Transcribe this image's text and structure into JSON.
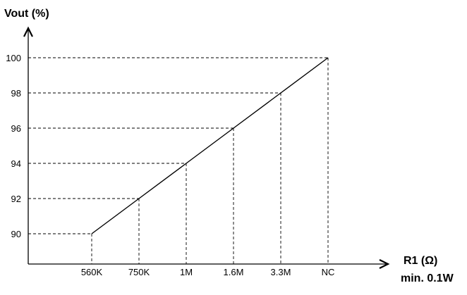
{
  "chart_data": {
    "type": "line",
    "ylabel": "Vout (%)",
    "xlabel": "R1 (Ω)",
    "xlabel_sub": "min. 0.1W",
    "categories": [
      "560K",
      "750K",
      "1M",
      "1.6M",
      "3.3M",
      "NC"
    ],
    "values": [
      90,
      92,
      94,
      96,
      98,
      100
    ],
    "yticks": [
      90,
      92,
      94,
      96,
      98,
      100
    ],
    "ylim": [
      88.2,
      100
    ],
    "grid": "dashed guides from each point to both axes",
    "legend": "none"
  }
}
